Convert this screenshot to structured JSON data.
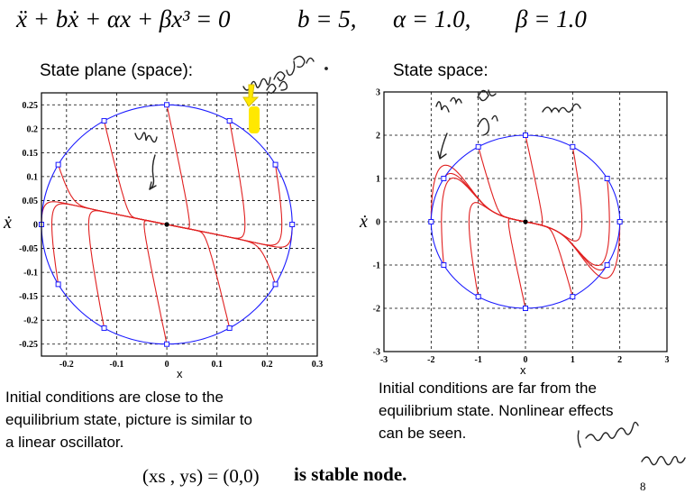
{
  "equation": {
    "main": "ẍ + bẋ + αx + βx³ = 0",
    "b": "b = 5,",
    "alpha": "α = 1.0,",
    "beta": "β = 1.0"
  },
  "left_title": "State plane (space):",
  "right_title": "State space:",
  "left_caption": [
    "Initial conditions are close to the",
    "equilibrium state, picture is similar to",
    "a linear oscillator."
  ],
  "right_caption": [
    "Initial conditions are far from the",
    "equilibrium  state. Nonlinear effects",
    "can be seen."
  ],
  "bottom_formula": "(xs , ys) = (0,0)",
  "bottom_text": "is stable node.",
  "page_number": "8",
  "handwriting": {
    "left_top": "very close to",
    "left_mid": "line",
    "right_top": "like it here curves",
    "right_bottom": "increase equilibrium"
  },
  "colors": {
    "trajectory": "#e02020",
    "circle": "#1a1aff",
    "grid": "#000000",
    "highlight": "#ffe800"
  },
  "chart_data": [
    {
      "type": "line",
      "title": "",
      "xlabel": "x",
      "ylabel": "ẋ",
      "xlim": [
        -0.25,
        0.3
      ],
      "ylim": [
        -0.275,
        0.275
      ],
      "xticks": [
        "-0.2",
        "-0.1",
        "0",
        "0.1",
        "0.2",
        "0.3"
      ],
      "yticks": [
        "0.25",
        "0.2",
        "0.15",
        "0.1",
        "0.05",
        "0",
        "-0.05",
        "-0.1",
        "-0.15",
        "-0.2",
        "-0.25"
      ],
      "initial_radius": 0.25,
      "grid": true
    },
    {
      "type": "line",
      "title": "",
      "xlabel": "x",
      "ylabel": "ẋ",
      "xlim": [
        -3,
        3
      ],
      "ylim": [
        -3,
        3
      ],
      "xticks": [
        "-3",
        "-2",
        "-1",
        "0",
        "1",
        "2",
        "3"
      ],
      "yticks": [
        "3",
        "2",
        "1",
        "0",
        "-1",
        "-2",
        "-3"
      ],
      "initial_radius": 2.0,
      "grid": true
    }
  ]
}
